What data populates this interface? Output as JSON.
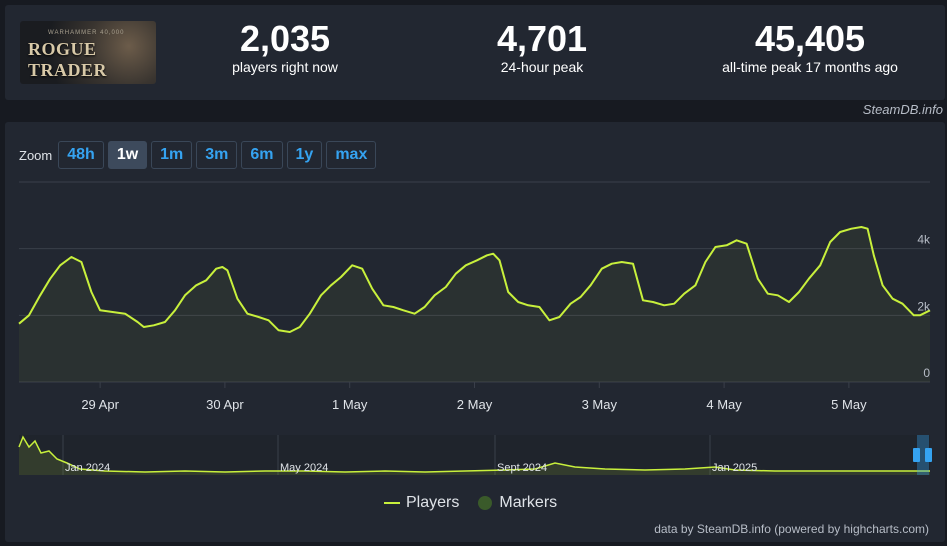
{
  "header": {
    "game_art": {
      "publisher": "WARHAMMER 40,000",
      "title": "ROGUE TRADER"
    },
    "stats": [
      {
        "value": "2,035",
        "label": "players right now"
      },
      {
        "value": "4,701",
        "label": "24-hour peak"
      },
      {
        "value": "45,405",
        "label": "all-time peak 17 months ago"
      }
    ],
    "watermark": "SteamDB.info"
  },
  "zoom": {
    "label": "Zoom",
    "options": [
      "48h",
      "1w",
      "1m",
      "3m",
      "6m",
      "1y",
      "max"
    ],
    "active": "1w"
  },
  "legend": {
    "players": "Players",
    "markers": "Markers"
  },
  "credit": "data by SteamDB.info (powered by highcharts.com)",
  "colors": {
    "line": "#c8f03c",
    "bg": "#222731",
    "grid": "#3a3f4a",
    "accent": "#35a3f1"
  },
  "chart_data": {
    "type": "line",
    "x_ticks": [
      "29 Apr",
      "30 Apr",
      "1 May",
      "2 May",
      "3 May",
      "4 May",
      "5 May"
    ],
    "y_ticks": [
      "0",
      "2k",
      "4k"
    ],
    "ylim": [
      0,
      6000
    ],
    "x_range_days": [
      0,
      7
    ],
    "series": [
      {
        "name": "Players",
        "points": [
          [
            0.0,
            1750
          ],
          [
            0.08,
            2000
          ],
          [
            0.17,
            2600
          ],
          [
            0.25,
            3100
          ],
          [
            0.33,
            3500
          ],
          [
            0.42,
            3750
          ],
          [
            0.5,
            3600
          ],
          [
            0.58,
            2700
          ],
          [
            0.65,
            2150
          ],
          [
            0.75,
            2100
          ],
          [
            0.85,
            2050
          ],
          [
            0.95,
            1800
          ],
          [
            1.0,
            1650
          ],
          [
            1.08,
            1700
          ],
          [
            1.17,
            1800
          ],
          [
            1.25,
            2150
          ],
          [
            1.33,
            2600
          ],
          [
            1.42,
            2900
          ],
          [
            1.5,
            3050
          ],
          [
            1.58,
            3400
          ],
          [
            1.63,
            3450
          ],
          [
            1.67,
            3350
          ],
          [
            1.75,
            2500
          ],
          [
            1.83,
            2050
          ],
          [
            1.92,
            1950
          ],
          [
            2.0,
            1850
          ],
          [
            2.08,
            1550
          ],
          [
            2.17,
            1500
          ],
          [
            2.25,
            1650
          ],
          [
            2.33,
            2050
          ],
          [
            2.42,
            2600
          ],
          [
            2.5,
            2900
          ],
          [
            2.58,
            3150
          ],
          [
            2.67,
            3500
          ],
          [
            2.75,
            3400
          ],
          [
            2.83,
            2800
          ],
          [
            2.92,
            2300
          ],
          [
            3.0,
            2250
          ],
          [
            3.08,
            2150
          ],
          [
            3.17,
            2050
          ],
          [
            3.25,
            2250
          ],
          [
            3.33,
            2600
          ],
          [
            3.42,
            2850
          ],
          [
            3.5,
            3250
          ],
          [
            3.58,
            3500
          ],
          [
            3.67,
            3650
          ],
          [
            3.75,
            3800
          ],
          [
            3.8,
            3850
          ],
          [
            3.85,
            3650
          ],
          [
            3.92,
            2700
          ],
          [
            4.0,
            2400
          ],
          [
            4.08,
            2300
          ],
          [
            4.17,
            2250
          ],
          [
            4.25,
            1850
          ],
          [
            4.33,
            1950
          ],
          [
            4.42,
            2350
          ],
          [
            4.5,
            2550
          ],
          [
            4.58,
            2900
          ],
          [
            4.67,
            3400
          ],
          [
            4.75,
            3550
          ],
          [
            4.83,
            3600
          ],
          [
            4.92,
            3550
          ],
          [
            5.0,
            2450
          ],
          [
            5.08,
            2400
          ],
          [
            5.17,
            2300
          ],
          [
            5.25,
            2350
          ],
          [
            5.33,
            2650
          ],
          [
            5.42,
            2900
          ],
          [
            5.5,
            3600
          ],
          [
            5.58,
            4050
          ],
          [
            5.67,
            4100
          ],
          [
            5.75,
            4250
          ],
          [
            5.83,
            4150
          ],
          [
            5.92,
            3100
          ],
          [
            6.0,
            2650
          ],
          [
            6.08,
            2600
          ],
          [
            6.17,
            2400
          ],
          [
            6.25,
            2700
          ],
          [
            6.33,
            3100
          ],
          [
            6.42,
            3500
          ],
          [
            6.5,
            4200
          ],
          [
            6.58,
            4500
          ],
          [
            6.67,
            4600
          ],
          [
            6.75,
            4650
          ],
          [
            6.8,
            4600
          ],
          [
            6.85,
            3800
          ],
          [
            6.92,
            2900
          ],
          [
            7.0,
            2500
          ],
          [
            7.08,
            2350
          ],
          [
            7.17,
            2000
          ],
          [
            7.22,
            2000
          ],
          [
            7.3,
            2150
          ]
        ]
      }
    ],
    "navigator": {
      "x_ticks": [
        "Jan 2024",
        "May 2024",
        "Sept 2024",
        "Jan 2025"
      ]
    }
  }
}
